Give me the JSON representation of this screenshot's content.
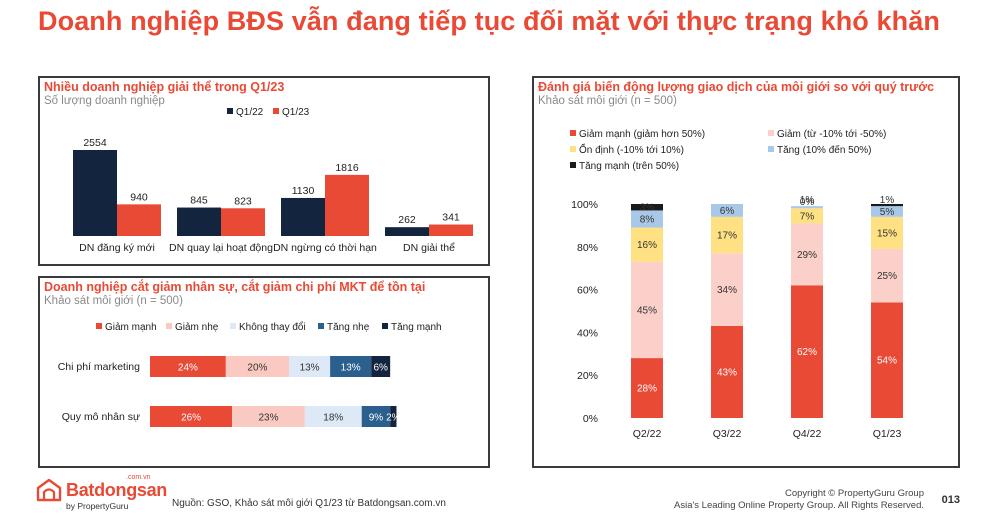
{
  "page_title": "Doanh nghiệp BĐS vẫn đang tiếp tục đối mặt với thực trạng khó khăn",
  "colors": {
    "accent": "#e84a35",
    "navy": "#13243f"
  },
  "chart_data": [
    {
      "type": "bar",
      "title": "Nhiều doanh nghiệp giải thể trong Q1/23",
      "subtitle": "Số lượng doanh nghiệp",
      "legend_position": "top",
      "categories": [
        "DN đăng ký mới",
        "DN quay lại hoạt động",
        "DN ngừng có thời hạn",
        "DN giải thể"
      ],
      "series": [
        {
          "name": "Q1/22",
          "color": "#13243f",
          "values": [
            2554,
            845,
            1130,
            262
          ]
        },
        {
          "name": "Q1/23",
          "color": "#e84a35",
          "values": [
            940,
            823,
            1816,
            341
          ]
        }
      ],
      "ylim": [
        0,
        2554
      ],
      "grid": false
    },
    {
      "type": "bar",
      "stacked": "horizontal-100",
      "title": "Doanh nghiệp cắt giảm nhân sự, cắt giảm chi phí MKT để tồn tại",
      "subtitle": "Khảo sát môi giới (n = 500)",
      "legend_position": "top",
      "categories": [
        "Chi phí marketing",
        "Quy mô nhân sự"
      ],
      "series": [
        {
          "name": "Giảm mạnh",
          "color": "#e84a35",
          "text_color": "#ffffff",
          "values": [
            24,
            26
          ]
        },
        {
          "name": "Giảm nhẹ",
          "color": "#f9c9c2",
          "text_color": "#333333",
          "values": [
            20,
            23
          ]
        },
        {
          "name": "Không thay đổi",
          "color": "#dde9f6",
          "text_color": "#333333",
          "values": [
            13,
            18
          ]
        },
        {
          "name": "Tăng nhẹ",
          "color": "#2b5f8e",
          "text_color": "#ffffff",
          "values": [
            13,
            9
          ]
        },
        {
          "name": "Tăng mạnh",
          "color": "#13243f",
          "text_color": "#ffffff",
          "values": [
            6,
            2
          ]
        }
      ],
      "grid": false
    },
    {
      "type": "bar",
      "stacked": "vertical-100",
      "title": "Đánh giá biến động lượng giao dịch của môi giới so với quý trước",
      "subtitle": "Khảo sát môi giới (n = 500)",
      "legend_position": "top",
      "categories": [
        "Q2/22",
        "Q3/22",
        "Q4/22",
        "Q1/23"
      ],
      "y_ticks": [
        "0%",
        "20%",
        "40%",
        "60%",
        "80%",
        "100%"
      ],
      "ylim": [
        0,
        100
      ],
      "series": [
        {
          "name": "Giảm mạnh (giảm hơn 50%)",
          "color": "#e84a35",
          "text_color": "#ffffff",
          "values": [
            28,
            43,
            62,
            54
          ],
          "labels": [
            "28%",
            "43%",
            "62%",
            "54%"
          ]
        },
        {
          "name": "Giảm (từ -10% tới -50%)",
          "color": "#fbd0c9",
          "text_color": "#333333",
          "values": [
            45,
            34,
            29,
            25
          ],
          "labels": [
            "45%",
            "34%",
            "29%",
            "25%"
          ]
        },
        {
          "name": "Ổn định (-10% tới 10%)",
          "color": "#ffe083",
          "text_color": "#333333",
          "values": [
            16,
            17,
            7,
            15
          ],
          "labels": [
            "16%",
            "17%",
            "7%",
            "15%"
          ]
        },
        {
          "name": "Tăng (10% đến 50%)",
          "color": "#a9c8e8",
          "text_color": "#333333",
          "values": [
            8,
            6,
            1,
            5
          ],
          "labels": [
            "8%",
            "6%",
            "1%",
            "5%"
          ]
        },
        {
          "name": "Tăng mạnh (trên 50%)",
          "color": "#1a1a1a",
          "text_color": "#333333",
          "values": [
            3,
            0,
            0,
            1
          ],
          "labels": [
            "3%",
            "",
            "0%",
            "1%"
          ]
        }
      ],
      "grid": false
    }
  ],
  "footer": {
    "source": "Nguồn: GSO, Khảo sát môi giới Q1/23 từ Batdongsan.com.vn",
    "copyright": "Copyright © PropertyGuru Group",
    "tagline": "Asia's Leading Online Property Group. All Rights Reserved.",
    "page_number": "013"
  },
  "logo": {
    "name": "Batdongsan",
    "domain": ".com.vn",
    "by": "by PropertyGuru"
  }
}
